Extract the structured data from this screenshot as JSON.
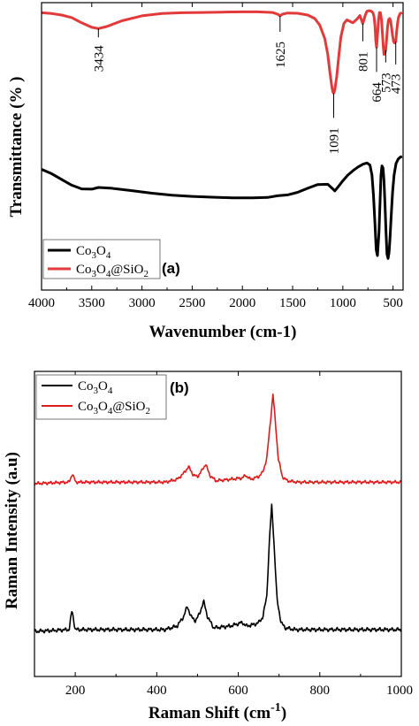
{
  "chart_data": [
    {
      "type": "line",
      "panel_label": "(a)",
      "xlabel": "Wavenumber (cm-1)",
      "ylabel": "Transmittance (% )",
      "xlim": [
        4000,
        400
      ],
      "x_reversed": true,
      "x_ticks": [
        4000,
        3500,
        3000,
        2500,
        2000,
        1500,
        1000,
        500
      ],
      "y_ticks_shown": false,
      "legend_position": "bottom-left",
      "series": [
        {
          "name": "Co3O4",
          "color": "#000000",
          "x": [
            4000,
            3900,
            3800,
            3700,
            3600,
            3500,
            3434,
            3300,
            3100,
            2900,
            2700,
            2500,
            2300,
            2100,
            1900,
            1750,
            1650,
            1550,
            1450,
            1350,
            1250,
            1150,
            1100,
            1080,
            1050,
            1000,
            950,
            900,
            850,
            800,
            760,
            730,
            710,
            695,
            680,
            668,
            655,
            640,
            628,
            620,
            610,
            600,
            590,
            580,
            570,
            560,
            550,
            540,
            530,
            520,
            505,
            490,
            470,
            450,
            430,
            410
          ],
          "y": [
            58,
            59.5,
            61.5,
            63.5,
            64.8,
            64.9,
            64.3,
            64.6,
            65.4,
            66.3,
            67.0,
            67.4,
            67.7,
            67.9,
            67.9,
            67.8,
            67.2,
            66.9,
            66.0,
            64.6,
            63.3,
            63.2,
            64.8,
            65.5,
            64.2,
            62.0,
            60.0,
            58.5,
            57.2,
            56.2,
            55.8,
            56.5,
            60.0,
            67.0,
            77.0,
            86.0,
            88.0,
            80.0,
            68.0,
            60.0,
            56.8,
            57.5,
            62.0,
            70.0,
            80.0,
            87.5,
            89.0,
            87.0,
            82.0,
            75.0,
            66.0,
            60.0,
            56.0,
            54.5,
            53.8,
            53.5
          ]
        },
        {
          "name": "Co3O4@SiO2",
          "color": "#e23a3a",
          "x": [
            4000,
            3900,
            3800,
            3700,
            3600,
            3500,
            3434,
            3350,
            3200,
            3000,
            2800,
            2600,
            2400,
            2200,
            2000,
            1850,
            1700,
            1650,
            1625,
            1600,
            1550,
            1450,
            1350,
            1280,
            1230,
            1180,
            1150,
            1130,
            1110,
            1100,
            1091,
            1080,
            1060,
            1040,
            1020,
            990,
            960,
            930,
            900,
            860,
            830,
            815,
            801,
            790,
            775,
            760,
            740,
            720,
            700,
            690,
            680,
            672,
            664,
            656,
            645,
            635,
            625,
            615,
            605,
            598,
            590,
            582,
            573,
            565,
            555,
            545,
            535,
            525,
            515,
            505,
            495,
            485,
            473,
            465,
            455,
            445,
            430,
            410
          ],
          "y": [
            3.5,
            3.8,
            4.3,
            5.2,
            7.0,
            8.6,
            9.0,
            8.3,
            6.3,
            4.6,
            3.8,
            3.5,
            3.4,
            3.3,
            3.2,
            3.2,
            3.4,
            4.0,
            4.6,
            4.0,
            3.6,
            3.7,
            4.3,
            5.5,
            7.8,
            12.5,
            18.0,
            24.0,
            29.0,
            31.0,
            31.5,
            30.5,
            25.5,
            18.5,
            12.0,
            7.3,
            6.0,
            6.5,
            7.0,
            5.8,
            4.5,
            6.0,
            7.3,
            6.0,
            4.2,
            3.0,
            2.8,
            2.9,
            3.5,
            4.8,
            8.0,
            13.0,
            15.5,
            12.0,
            6.0,
            3.4,
            3.5,
            6.0,
            11.0,
            15.0,
            18.0,
            17.8,
            16.5,
            13.0,
            8.5,
            6.0,
            5.5,
            6.2,
            8.5,
            11.5,
            13.5,
            14.0,
            13.5,
            10.5,
            7.0,
            5.0,
            3.8,
            3.5
          ]
        }
      ],
      "annotations": [
        {
          "text": "3434",
          "x": 3434
        },
        {
          "text": "1625",
          "x": 1625
        },
        {
          "text": "1091",
          "x": 1091
        },
        {
          "text": "801",
          "x": 801
        },
        {
          "text": "664",
          "x": 664
        },
        {
          "text": "573",
          "x": 573
        },
        {
          "text": "473",
          "x": 473
        }
      ]
    },
    {
      "type": "line",
      "panel_label": "(b)",
      "xlabel": "Raman Shift (cm-1)",
      "ylabel": "Raman Intensity (a.u)",
      "xlim": [
        100,
        1000
      ],
      "x_ticks": [
        200,
        400,
        600,
        800,
        1000
      ],
      "y_ticks_shown": false,
      "legend_position": "top-left",
      "series": [
        {
          "name": "Co3O4",
          "color": "#000000",
          "x": [
            100,
            185,
            192,
            200,
            420,
            450,
            465,
            475,
            485,
            495,
            505,
            515,
            525,
            540,
            580,
            610,
            620,
            640,
            650,
            660,
            670,
            677,
            682,
            687,
            695,
            705,
            715,
            740,
            1000
          ],
          "y": [
            0.02,
            0.03,
            0.14,
            0.03,
            0.03,
            0.05,
            0.1,
            0.16,
            0.1,
            0.08,
            0.12,
            0.19,
            0.1,
            0.04,
            0.05,
            0.07,
            0.05,
            0.06,
            0.07,
            0.1,
            0.22,
            0.56,
            0.73,
            0.55,
            0.2,
            0.07,
            0.04,
            0.03,
            0.03
          ]
        },
        {
          "name": "Co3O4@SiO2",
          "color": "#e01b1b",
          "x": [
            100,
            185,
            193,
            201,
            420,
            450,
            465,
            478,
            490,
            500,
            510,
            520,
            530,
            545,
            580,
            610,
            618,
            630,
            650,
            660,
            670,
            680,
            685,
            690,
            698,
            708,
            720,
            745,
            1000
          ],
          "y": [
            0.02,
            0.03,
            0.09,
            0.03,
            0.03,
            0.05,
            0.09,
            0.14,
            0.08,
            0.07,
            0.11,
            0.16,
            0.08,
            0.04,
            0.05,
            0.06,
            0.08,
            0.05,
            0.07,
            0.1,
            0.2,
            0.5,
            0.66,
            0.5,
            0.2,
            0.07,
            0.04,
            0.03,
            0.03
          ]
        }
      ]
    }
  ]
}
